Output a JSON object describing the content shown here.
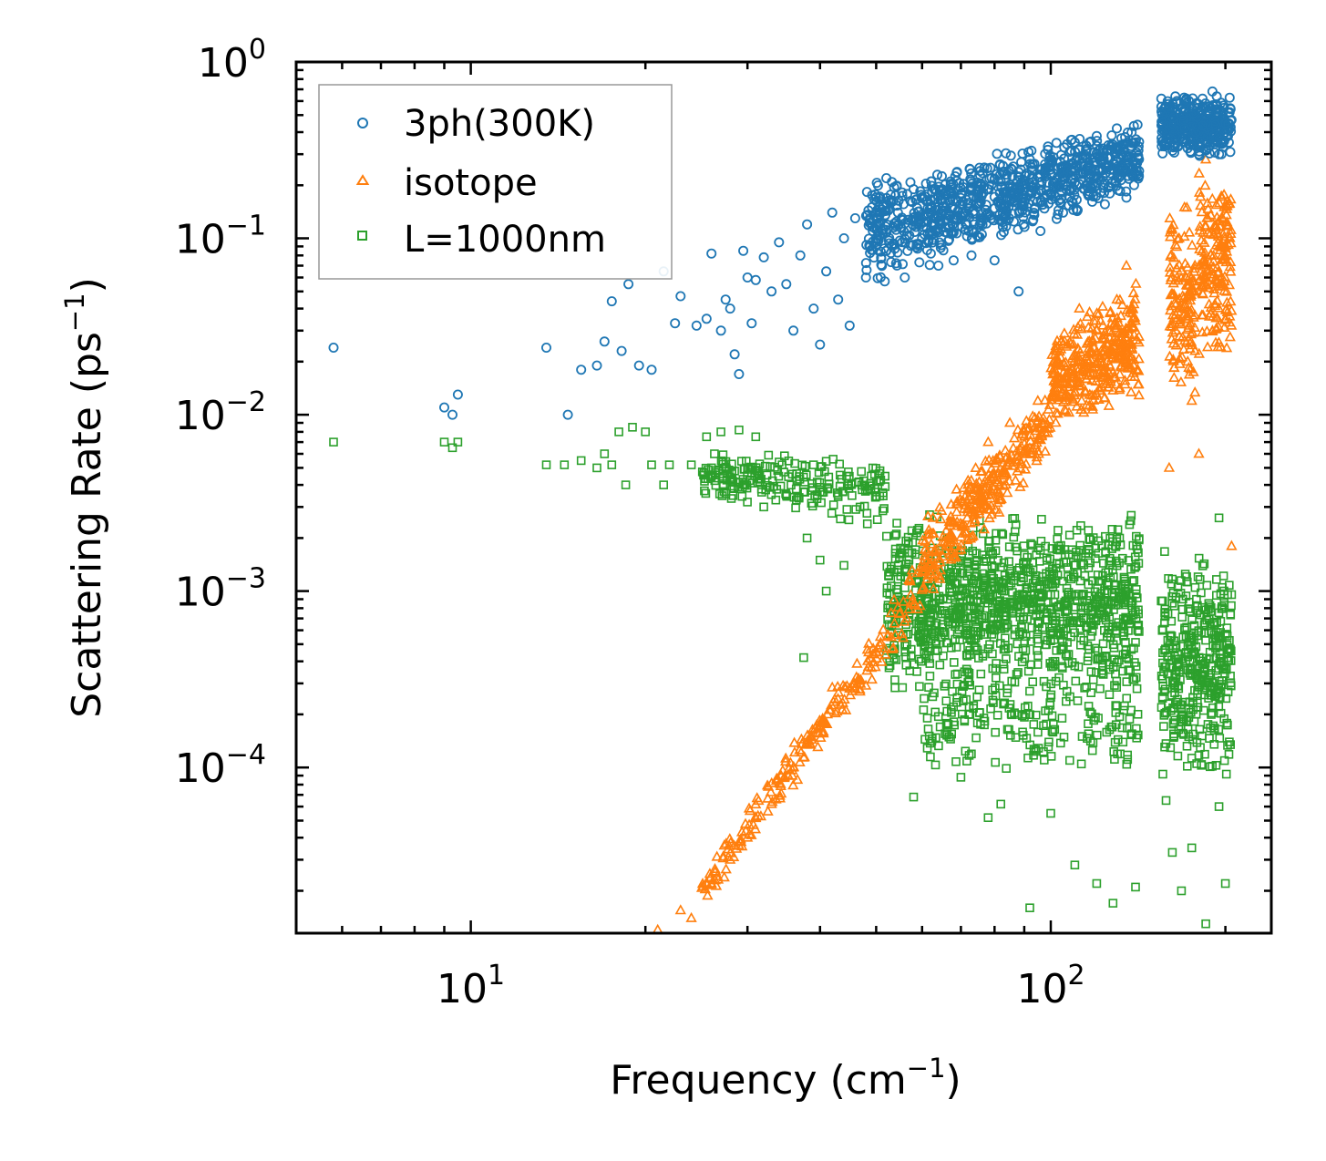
{
  "chart_data": {
    "type": "scatter",
    "title": "",
    "xlabel": "Frequency (cm",
    "xlabel_sup": "−1",
    "xlabel_close": ")",
    "ylabel": "Scattering Rate (ps",
    "ylabel_sup": "−1",
    "ylabel_close": ")",
    "xscale": "log",
    "yscale": "log",
    "xlim": [
      5,
      240
    ],
    "ylim": [
      1.15e-05,
      1.0
    ],
    "x_ticks": [
      {
        "value": 10,
        "base": "10",
        "exp": "1"
      },
      {
        "value": 100,
        "base": "10",
        "exp": "2"
      }
    ],
    "y_ticks": [
      {
        "value": 1,
        "base": "10",
        "exp": "0"
      },
      {
        "value": 0.1,
        "base": "10",
        "exp": "−1"
      },
      {
        "value": 0.01,
        "base": "10",
        "exp": "−2"
      },
      {
        "value": 0.001,
        "base": "10",
        "exp": "−3"
      },
      {
        "value": 0.0001,
        "base": "10",
        "exp": "−4"
      }
    ],
    "legend_position": "top-left",
    "colors": {
      "3ph": "#1f77b4",
      "isotope": "#ff7f0e",
      "boundary": "#2ca02c"
    },
    "series": [
      {
        "name": "3ph(300K)",
        "key": "3ph",
        "marker": "circle",
        "color": "#1f77b4",
        "points": [
          [
            5.8,
            0.024
          ],
          [
            9.0,
            0.011
          ],
          [
            9.3,
            0.01
          ],
          [
            9.5,
            0.013
          ],
          [
            13.5,
            0.024
          ],
          [
            14.7,
            0.01
          ],
          [
            15.5,
            0.018
          ],
          [
            16.5,
            0.019
          ],
          [
            17.0,
            0.026
          ],
          [
            17.5,
            0.044
          ],
          [
            18.2,
            0.023
          ],
          [
            18.7,
            0.055
          ],
          [
            19.5,
            0.019
          ],
          [
            20.5,
            0.018
          ],
          [
            21.5,
            0.065
          ],
          [
            22.5,
            0.033
          ],
          [
            23.0,
            0.047
          ],
          [
            24.5,
            0.032
          ],
          [
            25.5,
            0.035
          ],
          [
            26.0,
            0.082
          ],
          [
            27.0,
            0.03
          ],
          [
            27.5,
            0.045
          ],
          [
            28.0,
            0.04
          ],
          [
            28.5,
            0.022
          ],
          [
            29.0,
            0.017
          ],
          [
            29.5,
            0.085
          ],
          [
            30.0,
            0.06
          ],
          [
            30.5,
            0.033
          ],
          [
            31.0,
            0.058
          ],
          [
            32.0,
            0.078
          ],
          [
            33.0,
            0.05
          ],
          [
            34.0,
            0.095
          ],
          [
            35.0,
            0.055
          ],
          [
            36.0,
            0.03
          ],
          [
            37.0,
            0.08
          ],
          [
            38.0,
            0.12
          ],
          [
            39.0,
            0.04
          ],
          [
            40.0,
            0.025
          ],
          [
            41.0,
            0.065
          ],
          [
            42.0,
            0.14
          ],
          [
            43.0,
            0.045
          ],
          [
            44.0,
            0.1
          ],
          [
            45.0,
            0.032
          ],
          [
            46.0,
            0.13
          ],
          [
            48.0,
            0.06
          ],
          [
            50.0,
            0.14
          ],
          [
            52.0,
            0.085
          ],
          [
            54.0,
            0.175
          ],
          [
            56.0,
            0.06
          ],
          [
            58.0,
            0.19
          ],
          [
            60.0,
            0.1
          ],
          [
            62.0,
            0.165
          ],
          [
            64.0,
            0.07
          ],
          [
            66.0,
            0.14
          ],
          [
            68.0,
            0.075
          ],
          [
            70.0,
            0.18
          ],
          [
            73.0,
            0.08
          ],
          [
            76.0,
            0.2
          ],
          [
            80.0,
            0.075
          ],
          [
            84.0,
            0.23
          ],
          [
            88.0,
            0.05
          ],
          [
            92.0,
            0.28
          ],
          [
            96.0,
            0.11
          ],
          [
            100.0,
            0.28
          ],
          [
            105.0,
            0.14
          ],
          [
            110.0,
            0.35
          ],
          [
            115.0,
            0.2
          ],
          [
            120.0,
            0.38
          ],
          [
            125.0,
            0.26
          ],
          [
            130.0,
            0.42
          ],
          [
            135.0,
            0.17
          ],
          [
            140.0,
            0.35
          ],
          [
            165.0,
            0.6
          ],
          [
            170.0,
            0.42
          ],
          [
            175.0,
            0.55
          ],
          [
            180.0,
            0.3
          ],
          [
            185.0,
            0.5
          ],
          [
            190.0,
            0.68
          ],
          [
            195.0,
            0.38
          ],
          [
            200.0,
            0.45
          ]
        ],
        "bands": [
          {
            "xmin": 48,
            "xmax": 142,
            "ymin_start": 0.05,
            "ymin_end": 0.18,
            "ymax_start": 0.22,
            "ymax_end": 0.45,
            "count": 900,
            "seed": 11
          },
          {
            "xmin": 155,
            "xmax": 205,
            "ymin_start": 0.28,
            "ymin_end": 0.28,
            "ymax_start": 0.65,
            "ymax_end": 0.65,
            "count": 350,
            "seed": 12
          }
        ]
      },
      {
        "name": "isotope",
        "key": "isotope",
        "marker": "triangle",
        "color": "#ff7f0e",
        "points": [
          [
            21.0,
            1.2e-05
          ],
          [
            23.0,
            1.55e-05
          ],
          [
            24.0,
            1.4e-05
          ],
          [
            26.0,
            2.2e-05
          ],
          [
            28.0,
            3e-05
          ],
          [
            30.0,
            4e-05
          ],
          [
            33.0,
            6.2e-05
          ],
          [
            36.0,
            0.0001
          ],
          [
            40.0,
            0.00017
          ],
          [
            45.0,
            0.00028
          ],
          [
            50.0,
            0.00045
          ],
          [
            55.0,
            0.00075
          ],
          [
            60.0,
            0.0013
          ],
          [
            66.0,
            0.0022
          ],
          [
            72.0,
            0.004
          ],
          [
            78.0,
            0.007
          ],
          [
            85.0,
            0.009
          ],
          [
            95.0,
            0.012
          ],
          [
            105.0,
            0.025
          ],
          [
            112.0,
            0.04
          ],
          [
            120.0,
            0.03
          ],
          [
            130.0,
            0.045
          ],
          [
            135.0,
            0.07
          ],
          [
            160.0,
            0.005
          ],
          [
            165.0,
            0.06
          ],
          [
            170.0,
            0.15
          ],
          [
            175.0,
            0.012
          ],
          [
            180.0,
            0.006
          ],
          [
            185.0,
            0.28
          ],
          [
            190.0,
            0.03
          ],
          [
            195.0,
            0.09
          ],
          [
            200.0,
            0.035
          ],
          [
            205.0,
            0.0018
          ]
        ],
        "bands": [
          {
            "xmin": 25,
            "xmax": 60,
            "ymin_start": 1.6e-05,
            "ymin_end": 0.0007,
            "ymax_start": 2.5e-05,
            "ymax_end": 0.0016,
            "count": 220,
            "seed": 21
          },
          {
            "xmin": 60,
            "xmax": 100,
            "ymin_start": 0.0008,
            "ymin_end": 0.006,
            "ymax_start": 0.0025,
            "ymax_end": 0.014,
            "count": 320,
            "seed": 22
          },
          {
            "xmin": 100,
            "xmax": 142,
            "ymin_start": 0.008,
            "ymin_end": 0.012,
            "ymax_start": 0.03,
            "ymax_end": 0.06,
            "count": 380,
            "seed": 23
          },
          {
            "xmin": 160,
            "xmax": 178,
            "ymin_start": 0.012,
            "ymin_end": 0.012,
            "ymax_start": 0.16,
            "ymax_end": 0.16,
            "count": 140,
            "seed": 24
          },
          {
            "xmin": 180,
            "xmax": 205,
            "ymin_start": 0.02,
            "ymin_end": 0.02,
            "ymax_start": 0.25,
            "ymax_end": 0.25,
            "count": 180,
            "seed": 25
          }
        ]
      },
      {
        "name": "L=1000nm",
        "key": "boundary",
        "marker": "square",
        "color": "#2ca02c",
        "points": [
          [
            5.8,
            0.007
          ],
          [
            9.0,
            0.007
          ],
          [
            9.3,
            0.0065
          ],
          [
            9.5,
            0.007
          ],
          [
            13.5,
            0.0052
          ],
          [
            14.5,
            0.0052
          ],
          [
            15.5,
            0.0055
          ],
          [
            16.5,
            0.005
          ],
          [
            17.0,
            0.006
          ],
          [
            17.5,
            0.0052
          ],
          [
            18.0,
            0.008
          ],
          [
            18.5,
            0.004
          ],
          [
            19.0,
            0.0085
          ],
          [
            20.0,
            0.008
          ],
          [
            20.5,
            0.0052
          ],
          [
            21.5,
            0.004
          ],
          [
            22.0,
            0.0052
          ],
          [
            24.0,
            0.0052
          ],
          [
            25.5,
            0.0075
          ],
          [
            26.0,
            0.005
          ],
          [
            27.0,
            0.008
          ],
          [
            28.5,
            0.0048
          ],
          [
            29.0,
            0.0082
          ],
          [
            30.0,
            0.005
          ],
          [
            31.0,
            0.0075
          ],
          [
            32.0,
            0.003
          ],
          [
            35.0,
            0.0035
          ],
          [
            38.0,
            0.002
          ],
          [
            40.0,
            0.0015
          ],
          [
            41.0,
            0.001
          ],
          [
            44.0,
            0.0014
          ],
          [
            37.5,
            0.00042
          ],
          [
            58.0,
            6.8e-05
          ],
          [
            62.0,
            0.000115
          ],
          [
            70.0,
            8.8e-05
          ],
          [
            78.0,
            5.2e-05
          ],
          [
            82.0,
            6.2e-05
          ],
          [
            92.0,
            1.6e-05
          ],
          [
            100.0,
            5.5e-05
          ],
          [
            110.0,
            2.8e-05
          ],
          [
            120.0,
            2.2e-05
          ],
          [
            128.0,
            1.7e-05
          ],
          [
            140.0,
            2.1e-05
          ],
          [
            158.0,
            6.5e-05
          ],
          [
            162.0,
            3.3e-05
          ],
          [
            168.0,
            2e-05
          ],
          [
            175.0,
            3.5e-05
          ],
          [
            185.0,
            1.3e-05
          ],
          [
            195.0,
            6e-05
          ],
          [
            200.0,
            2.2e-05
          ],
          [
            195.0,
            0.0026
          ]
        ],
        "bands": [
          {
            "xmin": 25,
            "xmax": 52,
            "ymin_start": 0.0035,
            "ymin_end": 0.002,
            "ymax_start": 0.0062,
            "ymax_end": 0.0065,
            "count": 220,
            "seed": 31
          },
          {
            "xmin": 52,
            "xmax": 142,
            "ymin_start": 0.00025,
            "ymin_end": 0.00025,
            "ymax_start": 0.0028,
            "ymax_end": 0.0028,
            "count": 1100,
            "seed": 32
          },
          {
            "xmin": 60,
            "xmax": 142,
            "ymin_start": 9e-05,
            "ymin_end": 8e-05,
            "ymax_start": 0.0004,
            "ymax_end": 0.0004,
            "count": 200,
            "seed": 33
          },
          {
            "xmin": 155,
            "xmax": 205,
            "ymin_start": 8e-05,
            "ymin_end": 8e-05,
            "ymax_start": 0.0018,
            "ymax_end": 0.0018,
            "count": 380,
            "seed": 34
          }
        ]
      }
    ]
  }
}
